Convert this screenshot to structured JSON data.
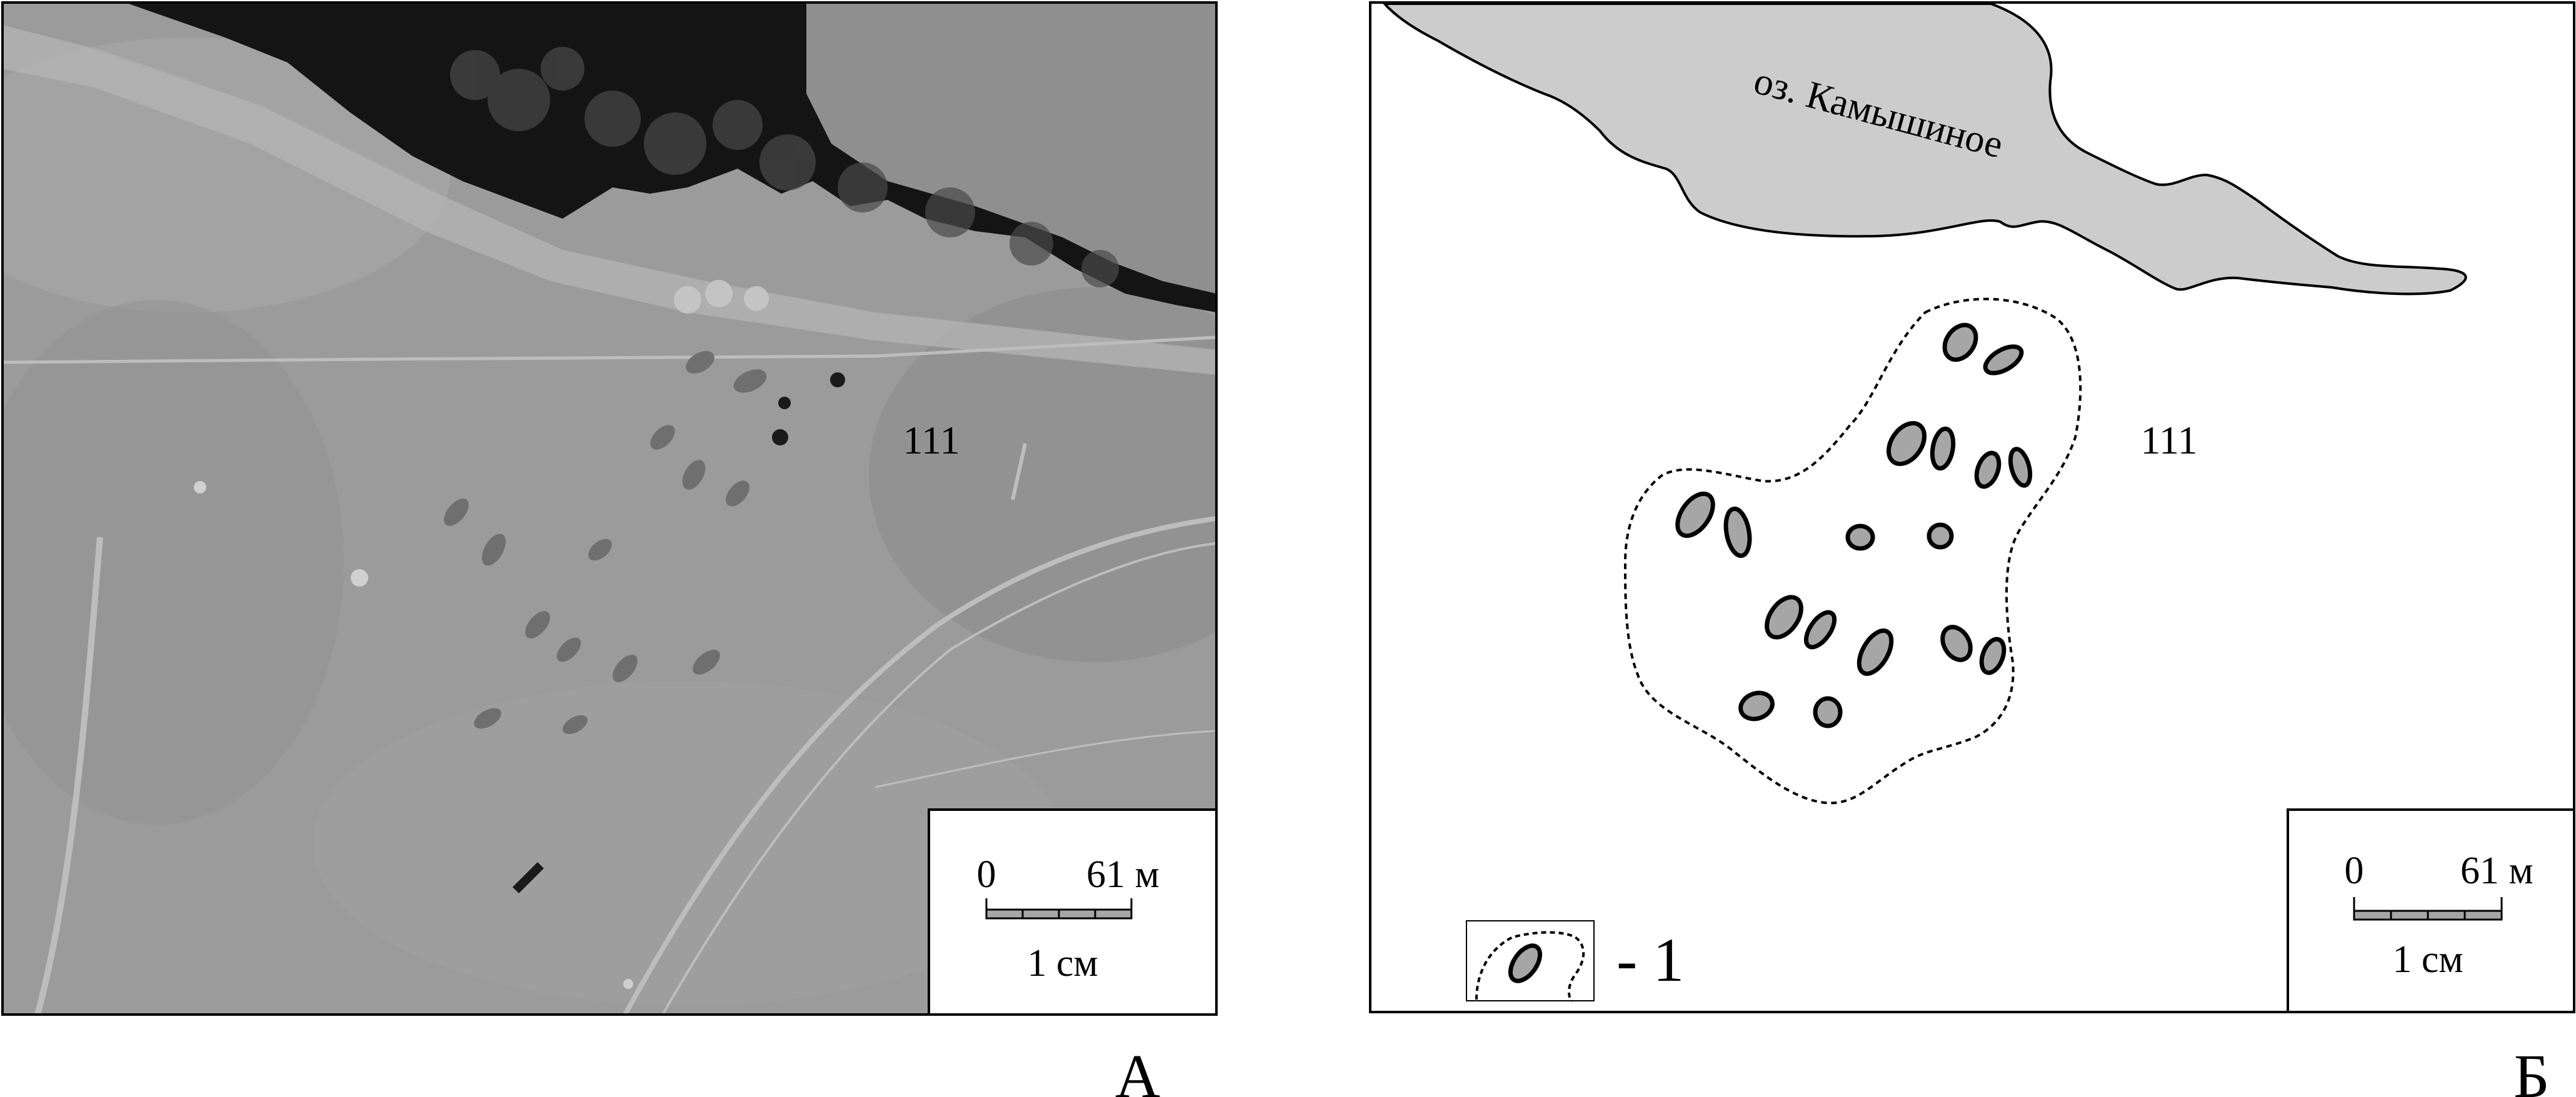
{
  "panel_a": {
    "site_number": "111",
    "panel_letter": "А",
    "scale_bar": {
      "zero": "0",
      "distance": "61 м",
      "map_length": "1 см"
    }
  },
  "panel_b": {
    "lake_name": "оз. Камышиное",
    "site_number": "111",
    "panel_letter": "Б",
    "scale_bar": {
      "zero": "0",
      "distance": "61 м",
      "map_length": "1 см"
    },
    "legend": {
      "label": "- 1"
    }
  },
  "colors": {
    "lake_fill": "#cccccc",
    "mound_fill": "#a6a6a6",
    "scale_bar_fill": "#a6a6a6",
    "photo_ground": "#9a9a9a",
    "photo_water": "#121212"
  }
}
